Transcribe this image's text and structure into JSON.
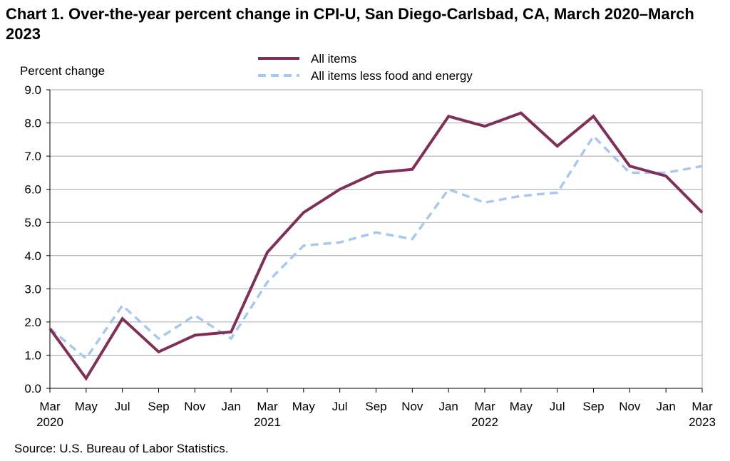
{
  "chart_data": {
    "type": "line",
    "title": "Chart 1. Over-the-year percent change in CPI-U, San Diego-Carlsbad, CA, March 2020–March 2023",
    "ylabel": "Percent change",
    "xlabel": "",
    "ylim": [
      0,
      9
    ],
    "yticks": [
      "0.0",
      "1.0",
      "2.0",
      "3.0",
      "4.0",
      "5.0",
      "6.0",
      "7.0",
      "8.0",
      "9.0"
    ],
    "grid": true,
    "legend": "top-center",
    "x": [
      "Mar 2020",
      "May 2020",
      "Jul 2020",
      "Sep 2020",
      "Nov 2020",
      "Jan 2021",
      "Mar 2021",
      "May 2021",
      "Jul 2021",
      "Sep 2021",
      "Nov 2021",
      "Jan 2022",
      "Mar 2022",
      "May 2022",
      "Jul 2022",
      "Sep 2022",
      "Nov 2022",
      "Jan 2023",
      "Mar 2023"
    ],
    "xtick_labels": [
      "Mar",
      "May",
      "Jul",
      "Sep",
      "Nov",
      "Jan",
      "Mar",
      "May",
      "Jul",
      "Sep",
      "Nov",
      "Jan",
      "Mar",
      "May",
      "Jul",
      "Sep",
      "Nov",
      "Jan",
      "Mar"
    ],
    "xtick_years": [
      "2020",
      "",
      "",
      "",
      "",
      "",
      "2021",
      "",
      "",
      "",
      "",
      "",
      "2022",
      "",
      "",
      "",
      "",
      "",
      "2023"
    ],
    "series": [
      {
        "name": "All items",
        "color": "#7f3058",
        "style": "solid",
        "values": [
          1.8,
          0.3,
          2.1,
          1.1,
          1.6,
          1.7,
          4.1,
          5.3,
          6.0,
          6.5,
          6.6,
          8.2,
          7.9,
          8.3,
          7.3,
          8.2,
          6.7,
          6.4,
          5.3
        ]
      },
      {
        "name": "All items less food and energy",
        "color": "#a9c8f0",
        "style": "dashed",
        "values": [
          1.8,
          0.9,
          2.5,
          1.5,
          2.2,
          1.5,
          3.2,
          4.3,
          4.4,
          4.7,
          4.5,
          6.0,
          5.6,
          5.8,
          5.9,
          7.6,
          6.5,
          6.5,
          6.7
        ]
      }
    ]
  },
  "source": "Source: U.S. Bureau of Labor Statistics."
}
